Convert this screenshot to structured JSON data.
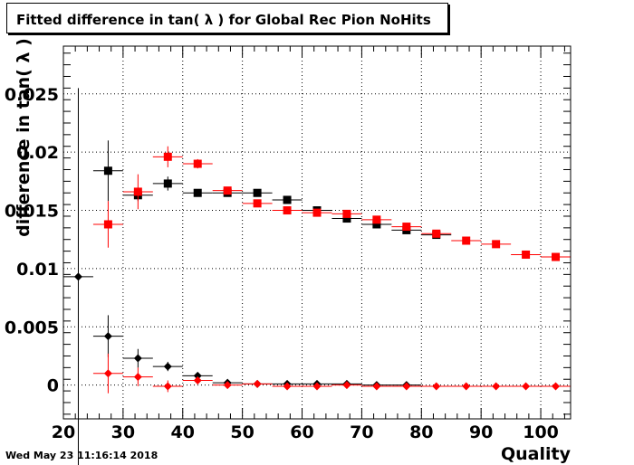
{
  "title": "Fitted difference in tan( λ ) for Global Rec Pion NoHits",
  "timestamp": "Wed May 23 11:16:14 2018",
  "colors": {
    "black": "#000000",
    "red": "#ff0000",
    "grid": "#000000"
  },
  "chart_data": {
    "type": "scatter",
    "title": "Fitted difference in tan( λ ) for Global Rec Pion NoHits",
    "xlabel": "Quality",
    "ylabel": "difference in tan( λ )",
    "xlim": [
      20,
      105
    ],
    "ylim": [
      -0.0029,
      0.0291
    ],
    "x_ticks": [
      {
        "v": 20,
        "label": "20"
      },
      {
        "v": 30,
        "label": "30"
      },
      {
        "v": 40,
        "label": "40"
      },
      {
        "v": 50,
        "label": "50"
      },
      {
        "v": 60,
        "label": "60"
      },
      {
        "v": 70,
        "label": "70"
      },
      {
        "v": 80,
        "label": "80"
      },
      {
        "v": 90,
        "label": "90"
      },
      {
        "v": 100,
        "label": "100"
      }
    ],
    "y_ticks": [
      {
        "v": 0,
        "label": "0"
      },
      {
        "v": 0.005,
        "label": "0.005"
      },
      {
        "v": 0.01,
        "label": "0.01"
      },
      {
        "v": 0.015,
        "label": "0.015"
      },
      {
        "v": 0.02,
        "label": "0.02"
      },
      {
        "v": 0.025,
        "label": "0.025"
      }
    ],
    "grid": true,
    "series": [
      {
        "marker": "square",
        "color": "#000000",
        "points": [
          {
            "x": 27.5,
            "y": 0.0184,
            "yerr": 0.0026
          },
          {
            "x": 32.5,
            "y": 0.0163,
            "yerr": 0.0005
          },
          {
            "x": 37.5,
            "y": 0.0173,
            "yerr": 0.0006
          },
          {
            "x": 42.5,
            "y": 0.0165,
            "yerr": 0.0003
          },
          {
            "x": 47.5,
            "y": 0.0165,
            "yerr": 0.0002
          },
          {
            "x": 52.5,
            "y": 0.0165,
            "yerr": 0.0002
          },
          {
            "x": 57.5,
            "y": 0.0159,
            "yerr": 0.0001
          },
          {
            "x": 62.5,
            "y": 0.015,
            "yerr": 0.0001
          },
          {
            "x": 67.5,
            "y": 0.0143,
            "yerr": 0.0001
          },
          {
            "x": 72.5,
            "y": 0.0138,
            "yerr": 0.0001
          },
          {
            "x": 77.5,
            "y": 0.0133,
            "yerr": 0.0001
          },
          {
            "x": 82.5,
            "y": 0.0129,
            "yerr": 0.0001
          }
        ]
      },
      {
        "marker": "square",
        "color": "#ff0000",
        "points": [
          {
            "x": 27.5,
            "y": 0.0138,
            "yerr": 0.002
          },
          {
            "x": 32.5,
            "y": 0.0166,
            "yerr": 0.0015
          },
          {
            "x": 37.5,
            "y": 0.0196,
            "yerr": 0.0009
          },
          {
            "x": 42.5,
            "y": 0.019,
            "yerr": 0.0004
          },
          {
            "x": 47.5,
            "y": 0.0167,
            "yerr": 0.0002
          },
          {
            "x": 52.5,
            "y": 0.0156,
            "yerr": 0.0002
          },
          {
            "x": 57.5,
            "y": 0.015,
            "yerr": 0.0001
          },
          {
            "x": 62.5,
            "y": 0.0148,
            "yerr": 0.0001
          },
          {
            "x": 67.5,
            "y": 0.0147,
            "yerr": 0.0001
          },
          {
            "x": 72.5,
            "y": 0.0142,
            "yerr": 0.0001
          },
          {
            "x": 77.5,
            "y": 0.0136,
            "yerr": 0.0001
          },
          {
            "x": 82.5,
            "y": 0.013,
            "yerr": 0.0001
          },
          {
            "x": 87.5,
            "y": 0.0124,
            "yerr": 0.0001
          },
          {
            "x": 92.5,
            "y": 0.0121,
            "yerr": 0.0001
          },
          {
            "x": 97.5,
            "y": 0.0112,
            "yerr": 0.0001
          },
          {
            "x": 102.5,
            "y": 0.011,
            "yerr": 0.0001
          }
        ]
      },
      {
        "marker": "diamond",
        "color": "#000000",
        "points": [
          {
            "x": 22.5,
            "y": 0.0093,
            "yerr": 0.0162
          },
          {
            "x": 27.5,
            "y": 0.0042,
            "yerr": 0.0018
          },
          {
            "x": 32.5,
            "y": 0.0023,
            "yerr": 0.0008
          },
          {
            "x": 37.5,
            "y": 0.0016,
            "yerr": 0.0004
          },
          {
            "x": 42.5,
            "y": 0.0008,
            "yerr": 0.0002
          },
          {
            "x": 47.5,
            "y": 0.0002,
            "yerr": 0.0001
          },
          {
            "x": 52.5,
            "y": 0.0001,
            "yerr": 0.0001
          },
          {
            "x": 57.5,
            "y": 0.0001,
            "yerr": 0.0001
          },
          {
            "x": 62.5,
            "y": 0.0001,
            "yerr": 0.0001
          },
          {
            "x": 67.5,
            "y": 0.0001,
            "yerr": 0.0001
          },
          {
            "x": 72.5,
            "y": 0.0,
            "yerr": 0.0001
          },
          {
            "x": 77.5,
            "y": 0.0,
            "yerr": 0.0001
          }
        ]
      },
      {
        "marker": "diamond",
        "color": "#ff0000",
        "points": [
          {
            "x": 27.5,
            "y": 0.001,
            "yerr": 0.0017
          },
          {
            "x": 32.5,
            "y": 0.0007,
            "yerr": 0.0008
          },
          {
            "x": 37.5,
            "y": -0.0001,
            "yerr": 0.0005
          },
          {
            "x": 42.5,
            "y": 0.0004,
            "yerr": 0.0003
          },
          {
            "x": 47.5,
            "y": 0.0,
            "yerr": 0.0002
          },
          {
            "x": 52.5,
            "y": 0.0001,
            "yerr": 0.0001
          },
          {
            "x": 57.5,
            "y": -0.0001,
            "yerr": 0.0001
          },
          {
            "x": 62.5,
            "y": -0.0001,
            "yerr": 0.0001
          },
          {
            "x": 67.5,
            "y": 0.0,
            "yerr": 0.0001
          },
          {
            "x": 72.5,
            "y": -0.0001,
            "yerr": 0.0001
          },
          {
            "x": 77.5,
            "y": -0.0001,
            "yerr": 0.0001
          },
          {
            "x": 82.5,
            "y": -0.0001,
            "yerr": 0.0001
          },
          {
            "x": 87.5,
            "y": -0.0001,
            "yerr": 0.0001
          },
          {
            "x": 92.5,
            "y": -0.0001,
            "yerr": 0.0001
          },
          {
            "x": 97.5,
            "y": -0.0001,
            "yerr": 0.0001
          },
          {
            "x": 102.5,
            "y": -0.0001,
            "yerr": 0.0001
          }
        ]
      }
    ]
  }
}
